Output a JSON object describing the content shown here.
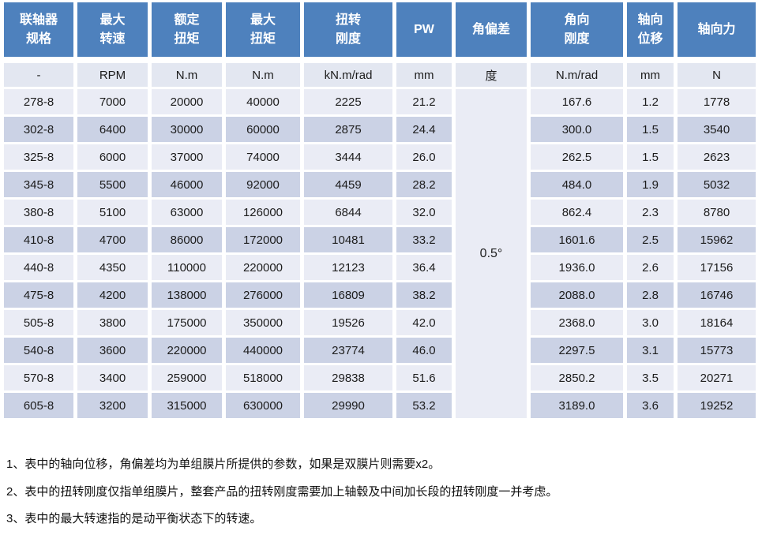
{
  "colors": {
    "header_bg": "#4E81BD",
    "header_text": "#FFFFFF",
    "unit_row_bg": "#E3E7F1",
    "row_light_bg": "#EAECF5",
    "row_dark_bg": "#CBD2E5",
    "merged_cell_bg": "#E8EBF4",
    "body_text": "#1C1C1C"
  },
  "table": {
    "columns": [
      {
        "label": "联轴器\n规格",
        "unit": "-"
      },
      {
        "label": "最大\n转速",
        "unit": "RPM"
      },
      {
        "label": "额定\n扭矩",
        "unit": "N.m"
      },
      {
        "label": "最大\n扭矩",
        "unit": "N.m"
      },
      {
        "label": "扭转\n刚度",
        "unit": "kN.m/rad"
      },
      {
        "label": "PW",
        "unit": "mm"
      },
      {
        "label": "角偏差",
        "unit": "度"
      },
      {
        "label": "角向\n刚度",
        "unit": "N.m/rad"
      },
      {
        "label": "轴向\n位移",
        "unit": "mm"
      },
      {
        "label": "轴向力",
        "unit": "N"
      }
    ],
    "angular_deviation": "0.5°",
    "rows": [
      [
        "278-8",
        "7000",
        "20000",
        "40000",
        "2225",
        "21.2",
        "167.6",
        "1.2",
        "1778"
      ],
      [
        "302-8",
        "6400",
        "30000",
        "60000",
        "2875",
        "24.4",
        "300.0",
        "1.5",
        "3540"
      ],
      [
        "325-8",
        "6000",
        "37000",
        "74000",
        "3444",
        "26.0",
        "262.5",
        "1.5",
        "2623"
      ],
      [
        "345-8",
        "5500",
        "46000",
        "92000",
        "4459",
        "28.2",
        "484.0",
        "1.9",
        "5032"
      ],
      [
        "380-8",
        "5100",
        "63000",
        "126000",
        "6844",
        "32.0",
        "862.4",
        "2.3",
        "8780"
      ],
      [
        "410-8",
        "4700",
        "86000",
        "172000",
        "10481",
        "33.2",
        "1601.6",
        "2.5",
        "15962"
      ],
      [
        "440-8",
        "4350",
        "110000",
        "220000",
        "12123",
        "36.4",
        "1936.0",
        "2.6",
        "17156"
      ],
      [
        "475-8",
        "4200",
        "138000",
        "276000",
        "16809",
        "38.2",
        "2088.0",
        "2.8",
        "16746"
      ],
      [
        "505-8",
        "3800",
        "175000",
        "350000",
        "19526",
        "42.0",
        "2368.0",
        "3.0",
        "18164"
      ],
      [
        "540-8",
        "3600",
        "220000",
        "440000",
        "23774",
        "46.0",
        "2297.5",
        "3.1",
        "15773"
      ],
      [
        "570-8",
        "3400",
        "259000",
        "518000",
        "29838",
        "51.6",
        "2850.2",
        "3.5",
        "20271"
      ],
      [
        "605-8",
        "3200",
        "315000",
        "630000",
        "29990",
        "53.2",
        "3189.0",
        "3.6",
        "19252"
      ]
    ]
  },
  "notes": [
    "1、表中的轴向位移，角偏差均为单组膜片所提供的参数，如果是双膜片则需要x2。",
    "2、表中的扭转刚度仅指单组膜片，整套产品的扭转刚度需要加上轴毂及中间加长段的扭转刚度一并考虑。",
    "3、表中的最大转速指的是动平衡状态下的转速。"
  ]
}
